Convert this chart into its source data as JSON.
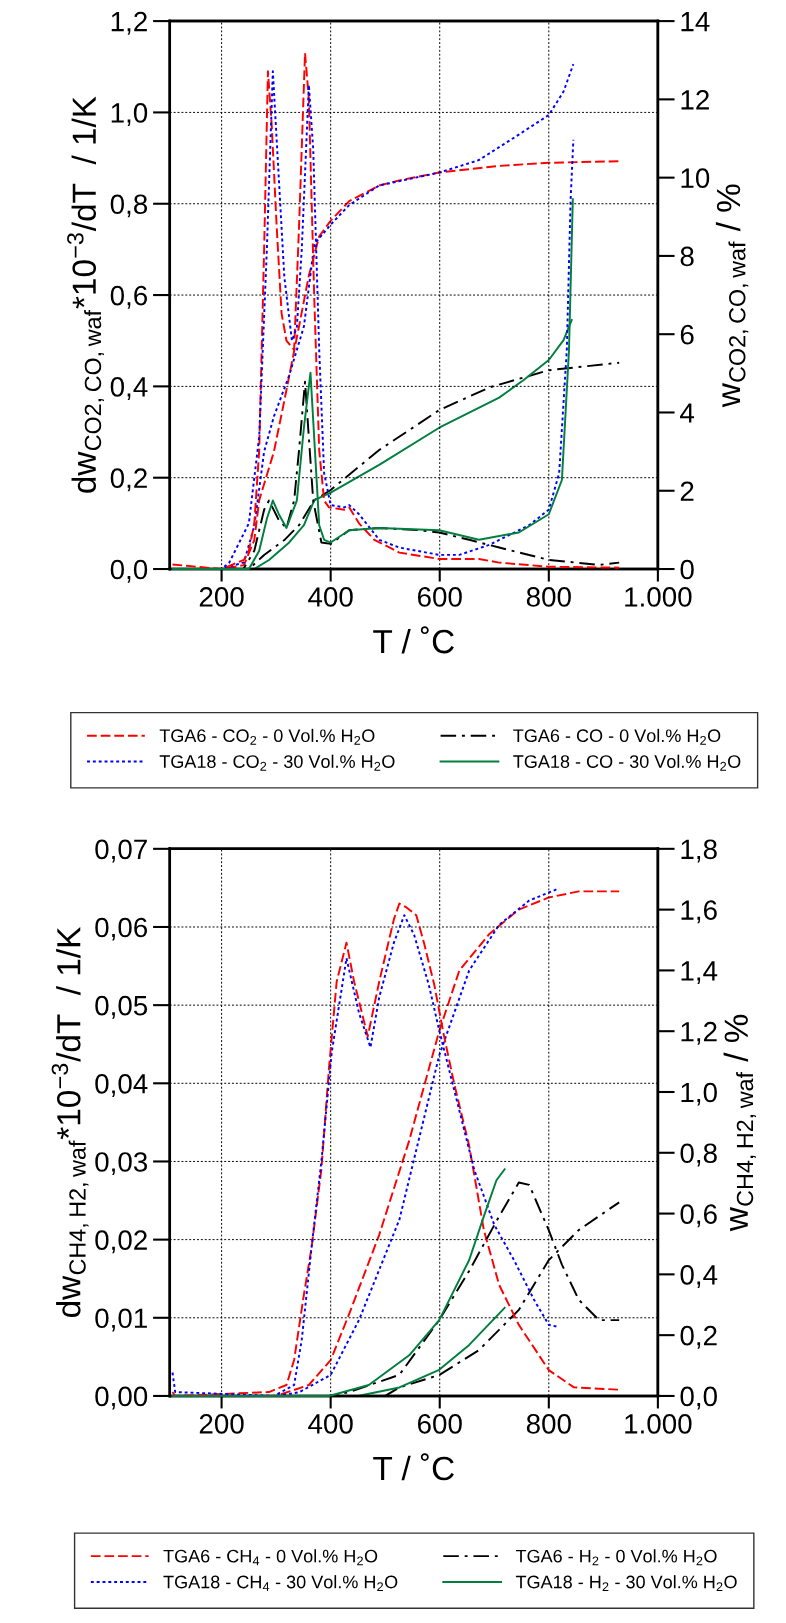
{
  "chart_data": [
    {
      "type": "line",
      "xlabel": "T / ˚C",
      "ylabel": "dw$_{CO2,CO,waf}$*10$^{−3}$/dT  / 1/K",
      "y2label": "w$_{CO2,CO,waf}$ / %",
      "xlim": [
        105,
        1000
      ],
      "xticks": [
        200,
        400,
        600,
        800,
        {
          "value": 1000,
          "label": "1.000"
        }
      ],
      "ylim": [
        0,
        1.2
      ],
      "yticks": [
        {
          "value": 0,
          "label": "0,0"
        },
        {
          "value": 0.2,
          "label": "0,2"
        },
        {
          "value": 0.4,
          "label": "0,4"
        },
        {
          "value": 0.6,
          "label": "0,6"
        },
        {
          "value": 0.8,
          "label": "0,8"
        },
        {
          "value": 1.0,
          "label": "1,0"
        },
        {
          "value": 1.2,
          "label": "1,2"
        }
      ],
      "y2lim": [
        0,
        14
      ],
      "y2ticks": [
        0,
        2,
        4,
        6,
        8,
        10,
        12,
        14
      ],
      "grid": true,
      "legend": "bottom",
      "series": [
        {
          "name": "TGA6 - CO$_{2}$ - 0 Vol.% H$_{2}$O",
          "color": "#ff0000",
          "line_style": "dashed",
          "x": [
            110,
            200,
            241,
            250,
            260,
            269,
            278,
            285,
            292,
            301,
            310,
            319,
            333,
            342,
            353,
            360,
            370,
            379,
            388,
            397,
            425,
            434,
            452,
            480,
            526,
            599,
            672,
            709,
            800,
            929
          ],
          "values": [
            0.01,
            0.0,
            0.02,
            0.04,
            0.1,
            0.26,
            0.7,
            1.09,
            0.97,
            0.75,
            0.56,
            0.5,
            0.48,
            0.75,
            1.13,
            1.03,
            0.59,
            0.26,
            0.15,
            0.135,
            0.13,
            0.135,
            0.1,
            0.064,
            0.036,
            0.022,
            0.022,
            0.014,
            0.005,
            0.003
          ]
        },
        {
          "color": "#ff0000",
          "line_style": "dashed",
          "axis": "y2",
          "x": [
            110,
            200,
            241,
            260,
            269,
            296,
            315,
            342,
            360,
            379,
            400,
            434,
            489,
            526,
            599,
            709,
            800,
            929
          ],
          "values": [
            0,
            0,
            0.1,
            0.74,
            1.76,
            3.0,
            4.3,
            6.2,
            7.5,
            8.5,
            8.9,
            9.4,
            9.8,
            9.93,
            10.13,
            10.3,
            10.38,
            10.42
          ]
        },
        {
          "name": "TGA18 - CO$_{2}$ - 30 Vol.% H$_{2}$O",
          "color": "#0000ff",
          "line_style": "dotted",
          "x": [
            110,
            200,
            214,
            250,
            269,
            283,
            294,
            301,
            315,
            329,
            338,
            347,
            360,
            368,
            379,
            388,
            400,
            425,
            434,
            452,
            489,
            526,
            599,
            636,
            691,
            764,
            800,
            819,
            833,
            840,
            845
          ],
          "values": [
            0.0,
            0.0,
            0.014,
            0.1,
            0.29,
            0.7,
            1.09,
            0.94,
            0.64,
            0.5,
            0.53,
            0.7,
            1.06,
            0.92,
            0.48,
            0.21,
            0.14,
            0.135,
            0.14,
            0.12,
            0.064,
            0.047,
            0.031,
            0.031,
            0.053,
            0.096,
            0.13,
            0.21,
            0.48,
            0.81,
            0.94
          ]
        },
        {
          "color": "#0000ff",
          "line_style": "dotted",
          "axis": "y2",
          "x": [
            110,
            200,
            241,
            260,
            278,
            296,
            324,
            351,
            370,
            400,
            434,
            489,
            599,
            672,
            745,
            800,
            827,
            845
          ],
          "values": [
            0,
            0,
            0.17,
            1.1,
            3.0,
            3.9,
            4.95,
            6.2,
            8.3,
            8.8,
            9.3,
            9.8,
            10.13,
            10.45,
            11.1,
            11.6,
            12.2,
            12.9
          ]
        },
        {
          "name": "TGA6 - CO - 0 Vol.% H$_{2}$O",
          "color": "#000000",
          "line_style": "dashdot",
          "x": [
            110,
            240,
            260,
            278,
            287,
            305,
            319,
            333,
            342,
            353,
            368,
            383,
            400,
            434,
            489,
            562,
            599,
            654,
            709,
            800,
            892,
            929
          ],
          "values": [
            0,
            0,
            0.04,
            0.13,
            0.15,
            0.107,
            0.09,
            0.15,
            0.26,
            0.41,
            0.15,
            0.058,
            0.055,
            0.085,
            0.09,
            0.085,
            0.08,
            0.064,
            0.047,
            0.02,
            0.009,
            0.014
          ]
        },
        {
          "color": "#000000",
          "line_style": "dashdot",
          "axis": "y2",
          "x": [
            110,
            250,
            278,
            315,
            342,
            370,
            400,
            489,
            599,
            691,
            800,
            929
          ],
          "values": [
            0,
            0,
            0.36,
            0.74,
            1.12,
            1.76,
            2.02,
            3.04,
            4.06,
            4.64,
            5.08,
            5.27
          ]
        },
        {
          "name": "TGA18 - CO - 30 Vol.% H$_{2}$O",
          "color": "#007f3f",
          "line_style": "solid",
          "x": [
            110,
            250,
            269,
            283,
            294,
            305,
            319,
            338,
            351,
            363,
            379,
            388,
            400,
            434,
            489,
            599,
            672,
            745,
            800,
            824,
            837,
            844
          ],
          "values": [
            0,
            0,
            0.04,
            0.11,
            0.15,
            0.12,
            0.09,
            0.15,
            0.31,
            0.43,
            0.096,
            0.064,
            0.058,
            0.085,
            0.09,
            0.085,
            0.064,
            0.08,
            0.12,
            0.195,
            0.48,
            0.81
          ]
        },
        {
          "color": "#007f3f",
          "line_style": "solid",
          "axis": "y2",
          "x": [
            110,
            260,
            287,
            324,
            351,
            370,
            400,
            489,
            599,
            709,
            754,
            800,
            827,
            842
          ],
          "values": [
            0,
            0,
            0.23,
            0.68,
            1.12,
            1.76,
            1.95,
            2.66,
            3.61,
            4.38,
            4.83,
            5.34,
            5.85,
            6.36
          ]
        }
      ]
    },
    {
      "type": "line",
      "xlabel": "T / ˚C",
      "ylabel": "dw$_{CH4,H2,waf}$*10$^{−3}$/dT  / 1/K",
      "y2label": "w$_{CH4,H2,waf}$ / %",
      "xlim": [
        105,
        1000
      ],
      "xticks": [
        200,
        400,
        600,
        800,
        {
          "value": 1000,
          "label": "1.000"
        }
      ],
      "ylim": [
        0,
        0.07
      ],
      "yticks": [
        {
          "value": 0,
          "label": "0,00"
        },
        {
          "value": 0.01,
          "label": "0,01"
        },
        {
          "value": 0.02,
          "label": "0,02"
        },
        {
          "value": 0.03,
          "label": "0,03"
        },
        {
          "value": 0.04,
          "label": "0,04"
        },
        {
          "value": 0.05,
          "label": "0,05"
        },
        {
          "value": 0.06,
          "label": "0,06"
        },
        {
          "value": 0.07,
          "label": "0,07"
        }
      ],
      "y2lim": [
        0,
        1.8
      ],
      "y2ticks": [
        {
          "value": 0,
          "label": "0,0"
        },
        {
          "value": 0.2,
          "label": "0,2"
        },
        {
          "value": 0.4,
          "label": "0,4"
        },
        {
          "value": 0.6,
          "label": "0,6"
        },
        {
          "value": 0.8,
          "label": "0,8"
        },
        {
          "value": 1.0,
          "label": "1,0"
        },
        {
          "value": 1.2,
          "label": "1,2"
        },
        {
          "value": 1.4,
          "label": "1,4"
        },
        {
          "value": 1.6,
          "label": "1,6"
        },
        {
          "value": 1.8,
          "label": "1,8"
        }
      ],
      "grid": true,
      "legend": "bottom",
      "series": [
        {
          "name": "TGA6 - CH$_{4}$ - 0 Vol.% H$_{2}$O",
          "color": "#ff0000",
          "line_style": "dashed",
          "x": [
            110,
            115,
            287,
            319,
            333,
            351,
            365,
            383,
            397,
            411,
            429,
            443,
            468,
            489,
            516,
            526,
            539,
            557,
            571,
            590,
            608,
            627,
            654,
            681,
            709,
            745,
            782,
            800,
            846,
            929
          ],
          "values": [
            0.0005,
            0.0,
            0.0005,
            0.0014,
            0.0046,
            0.013,
            0.019,
            0.029,
            0.042,
            0.053,
            0.058,
            0.053,
            0.046,
            0.053,
            0.061,
            0.063,
            0.0625,
            0.0615,
            0.058,
            0.0526,
            0.046,
            0.0398,
            0.032,
            0.0212,
            0.0142,
            0.0091,
            0.0052,
            0.0033,
            0.0011,
            0.0008
          ]
        },
        {
          "name": "TGA18 - CH$_{4}$ - 30 Vol.% H$_{2}$O",
          "color": "#0000ff",
          "line_style": "dotted",
          "x": [
            110,
            115,
            296,
            333,
            347,
            365,
            383,
            402,
            429,
            452,
            473,
            489,
            516,
            535,
            553,
            580,
            599,
            627,
            663,
            700,
            736,
            773,
            800,
            819
          ],
          "values": [
            0.003,
            0.0005,
            0.0,
            0.0014,
            0.0072,
            0.019,
            0.03,
            0.044,
            0.056,
            0.049,
            0.0446,
            0.051,
            0.058,
            0.0615,
            0.059,
            0.0526,
            0.0468,
            0.039,
            0.029,
            0.0219,
            0.0174,
            0.0123,
            0.0091,
            0.0088
          ]
        },
        {
          "name": "TGA6 - H$_{2}$ - 0 Vol.% H$_{2}$O",
          "color": "#000000",
          "line_style": "dashdot",
          "x": [
            110,
            400,
            434,
            526,
            599,
            654,
            709,
            745,
            764,
            800,
            824,
            855,
            892,
            929
          ],
          "values": [
            0,
            0,
            0.0005,
            0.0027,
            0.0097,
            0.016,
            0.023,
            0.0273,
            0.027,
            0.0212,
            0.0168,
            0.0123,
            0.0097,
            0.0097
          ]
        },
        {
          "name": "TGA18 - H$_{2}$ - 30 Vol.% H$_{2}$O",
          "color": "#007f3f",
          "line_style": "solid",
          "x": [
            110,
            397,
            470,
            544,
            599,
            654,
            681,
            704,
            719
          ],
          "values": [
            0,
            0,
            0.0014,
            0.0052,
            0.0097,
            0.0174,
            0.023,
            0.0276,
            0.029
          ]
        },
        {
          "color": "#ff0000",
          "line_style": "dashed",
          "axis": "y2",
          "x": [
            110,
            300,
            360,
            400,
            434,
            489,
            544,
            599,
            636,
            691,
            745,
            800,
            855,
            929
          ],
          "values": [
            0,
            0,
            0.036,
            0.118,
            0.27,
            0.53,
            0.84,
            1.2,
            1.4,
            1.52,
            1.6,
            1.64,
            1.66,
            1.66
          ]
        },
        {
          "color": "#0000ff",
          "line_style": "dotted",
          "axis": "y2",
          "x": [
            110,
            300,
            342,
            400,
            452,
            526,
            599,
            654,
            709,
            764,
            819
          ],
          "values": [
            0,
            0,
            0.012,
            0.069,
            0.25,
            0.58,
            1.12,
            1.4,
            1.55,
            1.63,
            1.67
          ]
        },
        {
          "color": "#000000",
          "line_style": "dashdot",
          "axis": "y2",
          "x": [
            110,
            500,
            526,
            599,
            672,
            745,
            800,
            855,
            929
          ],
          "values": [
            0,
            0,
            0.028,
            0.069,
            0.151,
            0.283,
            0.447,
            0.546,
            0.637
          ]
        },
        {
          "color": "#007f3f",
          "line_style": "solid",
          "axis": "y2",
          "x": [
            110,
            450,
            526,
            599,
            654,
            719
          ],
          "values": [
            0,
            0,
            0.028,
            0.086,
            0.168,
            0.29
          ]
        }
      ]
    }
  ]
}
